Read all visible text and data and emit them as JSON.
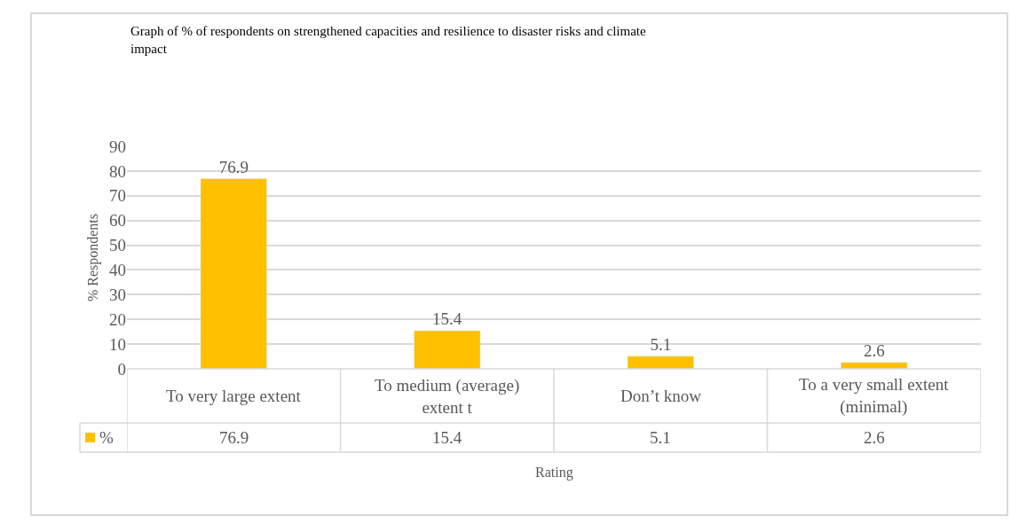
{
  "chart_data": {
    "type": "bar",
    "title": "Graph of % of respondents on strengthened capacities and resilience to disaster risks and climate impact",
    "xlabel": "Rating",
    "ylabel": "% Respondents",
    "categories": [
      "To very large extent",
      "To medium (average) extent t",
      "Don’t know",
      "To a very small extent (minimal)"
    ],
    "series": [
      {
        "name": "%",
        "color": "#ffc000",
        "values": [
          76.9,
          15.4,
          5.1,
          2.6
        ],
        "value_labels": [
          "76.9",
          "15.4",
          "5.1",
          "2.6"
        ]
      }
    ],
    "ylim": [
      0,
      90
    ],
    "yticks": [
      0,
      10,
      20,
      30,
      40,
      50,
      60,
      70,
      80,
      90
    ],
    "annotations": [
      "76.9",
      "15.4",
      "5.1",
      "2.6"
    ],
    "grid": "y"
  }
}
